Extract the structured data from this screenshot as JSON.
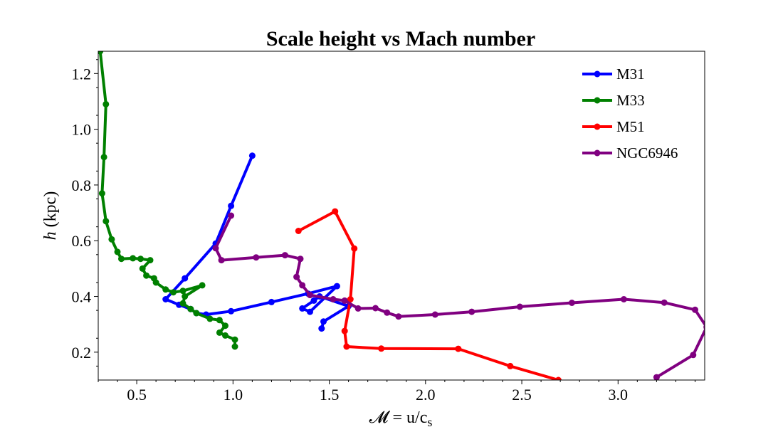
{
  "chart_data": {
    "type": "line",
    "title": "Scale height vs Mach number",
    "xlabel": "𝓜 = u/c",
    "xlabel_sub": "s",
    "ylabel_italic": "h",
    "ylabel_rest": " (kpc)",
    "xlim": [
      0.3,
      3.45
    ],
    "ylim": [
      0.1,
      1.28
    ],
    "xticks": [
      0.5,
      1.0,
      1.5,
      2.0,
      2.5,
      3.0
    ],
    "xtick_labels": [
      "0.5",
      "1.0",
      "1.5",
      "2.0",
      "2.5",
      "3.0"
    ],
    "yticks": [
      0.2,
      0.4,
      0.6,
      0.8,
      1.0,
      1.2
    ],
    "ytick_labels": [
      "0.2",
      "0.4",
      "0.6",
      "0.8",
      "1.0",
      "1.2"
    ],
    "grid": false,
    "legend_position": "top-right",
    "series": [
      {
        "name": "M31",
        "color": "#0000ff",
        "points": [
          [
            1.1,
            0.905
          ],
          [
            0.99,
            0.725
          ],
          [
            0.91,
            0.59
          ],
          [
            0.75,
            0.465
          ],
          [
            0.65,
            0.39
          ],
          [
            0.72,
            0.37
          ],
          [
            0.78,
            0.355
          ],
          [
            0.81,
            0.34
          ],
          [
            0.86,
            0.335
          ],
          [
            0.99,
            0.347
          ],
          [
            1.2,
            0.38
          ],
          [
            1.39,
            0.41
          ],
          [
            1.54,
            0.437
          ],
          [
            1.4,
            0.345
          ],
          [
            1.36,
            0.357
          ],
          [
            1.42,
            0.385
          ],
          [
            1.45,
            0.4
          ],
          [
            1.6,
            0.365
          ],
          [
            1.47,
            0.31
          ],
          [
            1.46,
            0.285
          ]
        ]
      },
      {
        "name": "M33",
        "color": "#008000",
        "points": [
          [
            0.31,
            1.28
          ],
          [
            0.34,
            1.09
          ],
          [
            0.33,
            0.9
          ],
          [
            0.32,
            0.77
          ],
          [
            0.34,
            0.67
          ],
          [
            0.37,
            0.605
          ],
          [
            0.4,
            0.56
          ],
          [
            0.42,
            0.535
          ],
          [
            0.48,
            0.537
          ],
          [
            0.52,
            0.535
          ],
          [
            0.57,
            0.53
          ],
          [
            0.53,
            0.5
          ],
          [
            0.55,
            0.475
          ],
          [
            0.59,
            0.465
          ],
          [
            0.6,
            0.45
          ],
          [
            0.65,
            0.425
          ],
          [
            0.69,
            0.415
          ],
          [
            0.74,
            0.42
          ],
          [
            0.84,
            0.44
          ],
          [
            0.75,
            0.4
          ],
          [
            0.74,
            0.375
          ],
          [
            0.78,
            0.355
          ],
          [
            0.81,
            0.34
          ],
          [
            0.88,
            0.32
          ],
          [
            0.93,
            0.315
          ],
          [
            0.96,
            0.295
          ],
          [
            0.93,
            0.27
          ],
          [
            0.96,
            0.26
          ],
          [
            1.01,
            0.245
          ],
          [
            1.01,
            0.22
          ]
        ]
      },
      {
        "name": "M51",
        "color": "#ff0000",
        "points": [
          [
            1.34,
            0.635
          ],
          [
            1.53,
            0.705
          ],
          [
            1.63,
            0.572
          ],
          [
            1.61,
            0.39
          ],
          [
            1.58,
            0.276
          ],
          [
            1.59,
            0.22
          ],
          [
            1.77,
            0.213
          ],
          [
            2.17,
            0.212
          ],
          [
            2.44,
            0.15
          ],
          [
            2.69,
            0.1
          ]
        ]
      },
      {
        "name": "NGC6946",
        "color": "#800080",
        "points": [
          [
            0.99,
            0.69
          ],
          [
            0.91,
            0.573
          ],
          [
            0.94,
            0.53
          ],
          [
            1.12,
            0.54
          ],
          [
            1.27,
            0.548
          ],
          [
            1.35,
            0.535
          ],
          [
            1.33,
            0.47
          ],
          [
            1.36,
            0.44
          ],
          [
            1.4,
            0.405
          ],
          [
            1.52,
            0.39
          ],
          [
            1.58,
            0.385
          ],
          [
            1.65,
            0.357
          ],
          [
            1.74,
            0.358
          ],
          [
            1.8,
            0.342
          ],
          [
            1.86,
            0.328
          ],
          [
            2.05,
            0.335
          ],
          [
            2.24,
            0.345
          ],
          [
            2.49,
            0.363
          ],
          [
            2.76,
            0.377
          ],
          [
            3.03,
            0.39
          ],
          [
            3.24,
            0.378
          ],
          [
            3.4,
            0.352
          ],
          [
            3.46,
            0.29
          ],
          [
            3.39,
            0.19
          ],
          [
            3.2,
            0.11
          ]
        ]
      }
    ]
  }
}
